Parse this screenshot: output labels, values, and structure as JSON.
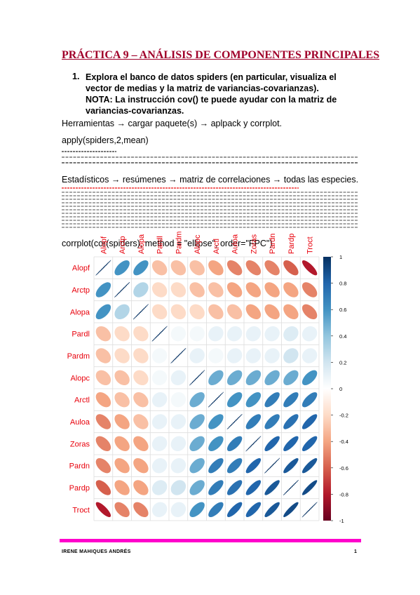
{
  "header": {
    "title": "PRÁCTICA 9 – ANÁLISIS DE COMPONENTES PRINCIPALES"
  },
  "item": {
    "number": "1.",
    "text": "Explora el banco de datos spiders (en particular, visualiza el vector de medias y la matriz de variancias-covarianzas). NOTA: La instrucción cov() te puede ayudar con la matriz de variancias-covarianzas."
  },
  "lines": [
    "Herramientas → cargar paquete(s) → aplpack y corrplot.",
    "apply(spiders,2,mean)",
    "Estadísticos → resúmenes → matriz de correlaciones → todas las especies.",
    "corrplot(cor(spiders), method = \"ellipse\", order=\"FPC\")"
  ],
  "chart_data": {
    "type": "corrplot",
    "categories": [
      "Alopf",
      "Arctp",
      "Alopa",
      "Pardl",
      "Pardm",
      "Alopc",
      "Arctl",
      "Auloa",
      "Zoras",
      "Pardn",
      "Pardp",
      "Troct"
    ],
    "values": [
      [
        1,
        0.6,
        0.6,
        -0.3,
        -0.3,
        -0.3,
        -0.4,
        -0.5,
        -0.5,
        -0.5,
        -0.6,
        -0.8
      ],
      [
        0.6,
        1,
        0.3,
        -0.2,
        -0.2,
        -0.3,
        -0.3,
        -0.4,
        -0.4,
        -0.4,
        -0.4,
        -0.5
      ],
      [
        0.6,
        0.3,
        1,
        -0.2,
        -0.2,
        -0.2,
        -0.3,
        -0.3,
        -0.4,
        -0.4,
        -0.4,
        -0.5
      ],
      [
        -0.3,
        -0.2,
        -0.2,
        1,
        0.05,
        0.05,
        0.1,
        0.1,
        0.1,
        0.1,
        0.15,
        0.1
      ],
      [
        -0.3,
        -0.2,
        -0.2,
        0.05,
        1,
        0.1,
        0.05,
        0.1,
        0.1,
        0.1,
        0.2,
        0.1
      ],
      [
        -0.3,
        -0.3,
        -0.2,
        0.05,
        0.1,
        1,
        0.5,
        0.5,
        0.5,
        0.5,
        0.5,
        0.6
      ],
      [
        -0.4,
        -0.3,
        -0.3,
        0.1,
        0.05,
        0.5,
        1,
        0.6,
        0.6,
        0.7,
        0.7,
        0.7
      ],
      [
        -0.5,
        -0.4,
        -0.3,
        0.1,
        0.1,
        0.5,
        0.6,
        1,
        0.7,
        0.7,
        0.75,
        0.8
      ],
      [
        -0.5,
        -0.4,
        -0.4,
        0.1,
        0.1,
        0.5,
        0.6,
        0.7,
        1,
        0.8,
        0.8,
        0.8
      ],
      [
        -0.5,
        -0.4,
        -0.4,
        0.1,
        0.1,
        0.5,
        0.7,
        0.7,
        0.8,
        1,
        0.85,
        0.85
      ],
      [
        -0.6,
        -0.4,
        -0.4,
        0.15,
        0.2,
        0.5,
        0.7,
        0.75,
        0.8,
        0.85,
        1,
        0.9
      ],
      [
        -0.8,
        -0.5,
        -0.5,
        0.1,
        0.1,
        0.6,
        0.7,
        0.8,
        0.8,
        0.85,
        0.9,
        1
      ]
    ],
    "clim": [
      -1,
      1
    ],
    "cticks": [
      1,
      0.8,
      0.6,
      0.4,
      0.2,
      0,
      -0.2,
      -0.4,
      -0.6,
      -0.8,
      -1
    ],
    "colors": [
      "#67001F",
      "#B2182B",
      "#D6604D",
      "#F4A582",
      "#FDDBC7",
      "#FFFFFF",
      "#D1E5F0",
      "#92C5DE",
      "#4393C3",
      "#2166AC",
      "#053061"
    ],
    "label_color": "#e8000b"
  },
  "footer": {
    "author": "IRENE MAHIQUES ANDRÉS",
    "page": "1"
  }
}
